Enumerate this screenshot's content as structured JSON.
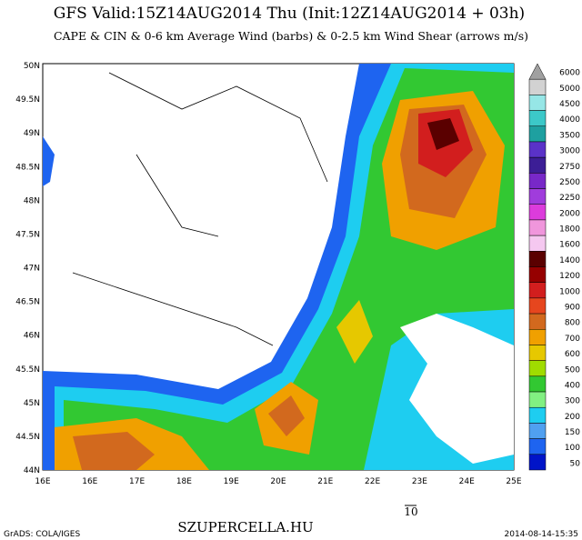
{
  "header": {
    "title": "GFS Valid:15Z14AUG2014 Thu (Init:12Z14AUG2014 + 03h)",
    "subtitle": "CAPE & CIN & 0-6 km Average Wind (barbs) & 0-2.5 km Wind Shear (arrows m/s)"
  },
  "axes": {
    "lat_labels": [
      "50N",
      "49.5N",
      "49N",
      "48.5N",
      "48N",
      "47.5N",
      "47N",
      "46.5N",
      "46N",
      "45.5N",
      "45N",
      "44.5N",
      "44N"
    ],
    "lon_labels": [
      "16E",
      "16E",
      "17E",
      "18E",
      "19E",
      "20E",
      "21E",
      "22E",
      "23E",
      "24E",
      "25E"
    ]
  },
  "colorbar": {
    "labels": [
      "6000",
      "5000",
      "4500",
      "4000",
      "3500",
      "3000",
      "2750",
      "2500",
      "2250",
      "2000",
      "1800",
      "1600",
      "1400",
      "1200",
      "1000",
      "900",
      "800",
      "700",
      "600",
      "500",
      "400",
      "300",
      "200",
      "150",
      "100",
      "50"
    ],
    "colors": [
      "#a0a0a0",
      "#d2d2d2",
      "#96e6e6",
      "#3cc8c8",
      "#1ea0a0",
      "#5a32c8",
      "#3c1e96",
      "#7828c8",
      "#a03cdc",
      "#dc3cdc",
      "#f096dc",
      "#f5c8f0",
      "#5a0000",
      "#960000",
      "#d21e1e",
      "#e6461e",
      "#d2691e",
      "#f0a000",
      "#e6c800",
      "#a0dc00",
      "#32c832",
      "#82f082",
      "#1ecdf0",
      "#50a0f0",
      "#1e64f0",
      "#0014c8"
    ]
  },
  "legend_arrow_label": "10",
  "footer": {
    "left": "GrADS: COLA/IGES",
    "center": "SZUPERCELLA.HU",
    "right": "2014-08-14-15:35"
  }
}
